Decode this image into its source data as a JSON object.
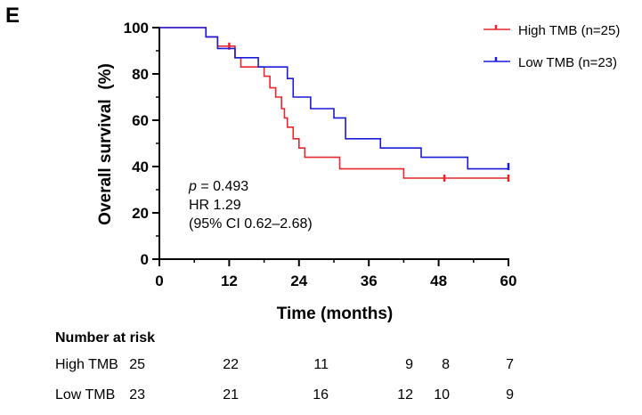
{
  "panel_label": "E",
  "chart_data": {
    "type": "line",
    "subtype": "kaplan-meier",
    "xlabel": "Time (months)",
    "ylabel": "Overall survival  (%)",
    "xlim": [
      0,
      60
    ],
    "ylim": [
      0,
      100
    ],
    "xticks": [
      0,
      12,
      24,
      36,
      48,
      60
    ],
    "yticks": [
      0,
      20,
      40,
      60,
      80,
      100
    ],
    "grid": false,
    "legend_position": "top-right",
    "series": [
      {
        "name": "High TMB (n=25)",
        "short_name": "High TMB",
        "color": "#e8262b",
        "x": [
          0,
          8,
          10,
          11,
          13,
          14,
          18,
          19,
          20,
          21,
          21.5,
          22,
          23,
          24,
          25,
          31,
          42,
          60
        ],
        "y": [
          100,
          96,
          92,
          92,
          87,
          83,
          79,
          74,
          70,
          65,
          61,
          57,
          52,
          48,
          44,
          39,
          35,
          35
        ],
        "censor_x": [
          12,
          49,
          60
        ],
        "censor_y": [
          92,
          35,
          35
        ],
        "at_risk": [
          25,
          22,
          11,
          9,
          8,
          7
        ]
      },
      {
        "name": "Low TMB (n=23)",
        "short_name": "Low TMB",
        "color": "#1a1adb",
        "x": [
          0,
          8,
          10,
          13,
          17,
          22,
          23,
          26,
          30,
          32,
          38,
          45,
          53,
          60
        ],
        "y": [
          100,
          96,
          91,
          87,
          83,
          78,
          70,
          65,
          61,
          52,
          48,
          44,
          39,
          39
        ],
        "censor_x": [
          60
        ],
        "censor_y": [
          40
        ],
        "at_risk": [
          23,
          21,
          16,
          12,
          10,
          9
        ]
      }
    ],
    "annotation": {
      "p_label": "p",
      "p_value": " = 0.493",
      "hr": "HR 1.29",
      "ci": "(95% CI 0.62–2.68)"
    },
    "risk_table": {
      "title": "Number at risk",
      "times": [
        0,
        12,
        24,
        36,
        48,
        60
      ]
    }
  }
}
